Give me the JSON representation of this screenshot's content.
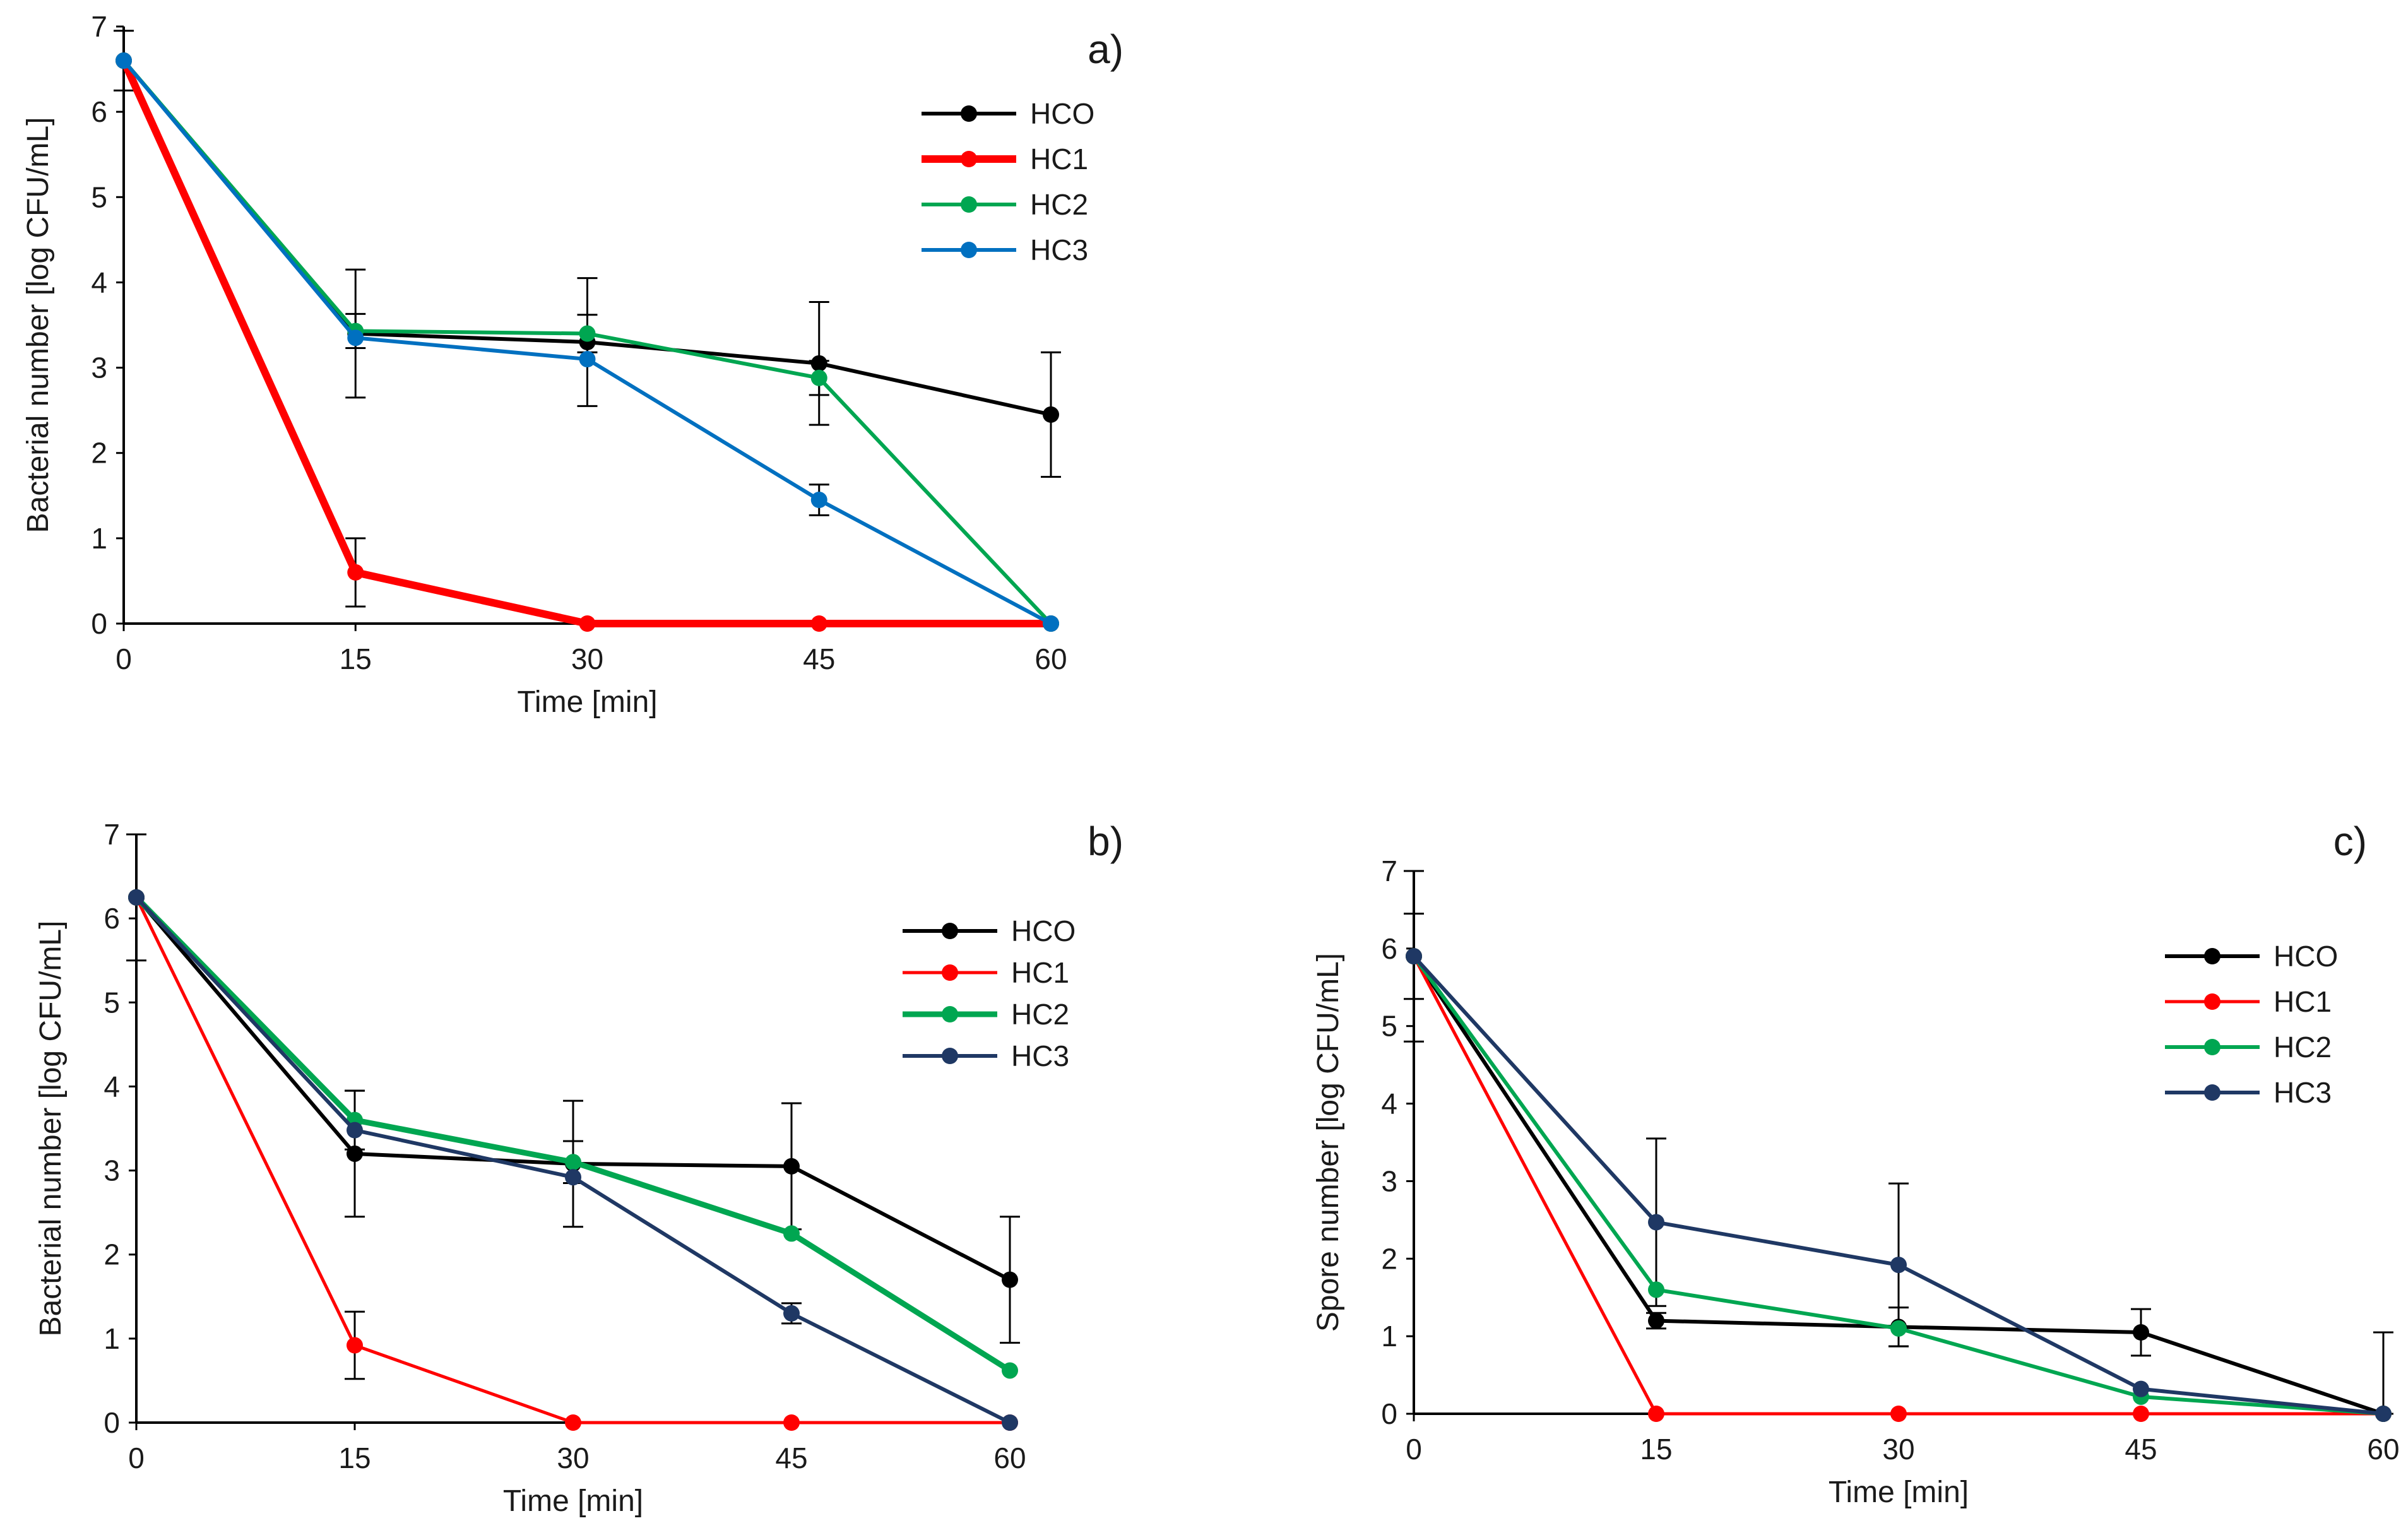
{
  "chart_data": [
    {
      "type": "line",
      "panel_label": "a)",
      "title": "",
      "xlabel": "Time [min]",
      "ylabel": "Bacterial number [log CFU/mL]",
      "x": [
        0,
        15,
        30,
        45,
        60
      ],
      "xticks": [
        "0",
        "15",
        "30",
        "45",
        "60"
      ],
      "xlim": [
        0,
        60
      ],
      "ylim": [
        0,
        7
      ],
      "yticks": [
        "0",
        "1",
        "2",
        "3",
        "4",
        "5",
        "6",
        "7"
      ],
      "grid": false,
      "legend_position": "top-right",
      "series": [
        {
          "name": "HCO",
          "color": "#000000",
          "values": [
            6.6,
            3.4,
            3.3,
            3.05,
            2.45
          ],
          "errors": [
            0.35,
            0.75,
            0.75,
            0.72,
            0.73
          ]
        },
        {
          "name": "HC1",
          "color": "#ff0000",
          "values": [
            6.6,
            0.6,
            0.0,
            0.0,
            0.0
          ],
          "errors": [
            0.0,
            0.4,
            0.0,
            0.0,
            0.0
          ]
        },
        {
          "name": "HC2",
          "color": "#00a651",
          "values": [
            6.6,
            3.43,
            3.4,
            2.88,
            0.0
          ],
          "errors": [
            0.0,
            0.2,
            0.22,
            0.2,
            0.0
          ]
        },
        {
          "name": "HC3",
          "color": "#0070c0",
          "values": [
            6.6,
            3.35,
            3.1,
            1.45,
            0.0
          ],
          "errors": [
            0.0,
            0.0,
            0.0,
            0.18,
            0.0
          ]
        }
      ]
    },
    {
      "type": "line",
      "panel_label": "b)",
      "title": "",
      "xlabel": "Time [min]",
      "ylabel": "Bacterial number [log CFU/mL]",
      "x": [
        0,
        15,
        30,
        45,
        60
      ],
      "xticks": [
        "0",
        "15",
        "30",
        "45",
        "60"
      ],
      "xlim": [
        0,
        60
      ],
      "ylim": [
        0,
        7
      ],
      "yticks": [
        "0",
        "1",
        "2",
        "3",
        "4",
        "5",
        "6",
        "7"
      ],
      "grid": false,
      "legend_position": "top-right",
      "series": [
        {
          "name": "HCO",
          "color": "#000000",
          "values": [
            6.25,
            3.2,
            3.08,
            3.05,
            1.7
          ],
          "errors": [
            0.75,
            0.75,
            0.75,
            0.75,
            0.75
          ]
        },
        {
          "name": "HC1",
          "color": "#ff0000",
          "values": [
            6.25,
            0.92,
            0.0,
            0.0,
            0.0
          ],
          "errors": [
            0.0,
            0.4,
            0.0,
            0.0,
            0.0
          ]
        },
        {
          "name": "HC2",
          "color": "#00a651",
          "values": [
            6.25,
            3.6,
            3.1,
            2.25,
            0.62
          ],
          "errors": [
            0.0,
            0.35,
            0.25,
            0.0,
            0.0
          ]
        },
        {
          "name": "HC3",
          "color": "#1f3864",
          "values": [
            6.25,
            3.48,
            2.92,
            1.3,
            0.0
          ],
          "errors": [
            0.0,
            0.0,
            0.0,
            0.12,
            0.0
          ]
        }
      ]
    },
    {
      "type": "line",
      "panel_label": "c)",
      "title": "",
      "xlabel": "Time [min]",
      "ylabel": "Spore number [log CFU/mL]",
      "x": [
        0,
        15,
        30,
        45,
        60
      ],
      "xticks": [
        "0",
        "15",
        "30",
        "45",
        "60"
      ],
      "xlim": [
        0,
        60
      ],
      "ylim": [
        0,
        7
      ],
      "yticks": [
        "0",
        "1",
        "2",
        "3",
        "4",
        "5",
        "6",
        "7"
      ],
      "grid": false,
      "legend_position": "top-right",
      "series": [
        {
          "name": "HCO",
          "color": "#000000",
          "values": [
            5.9,
            1.2,
            1.12,
            1.05,
            0.0
          ],
          "errors": [
            1.1,
            0.1,
            0.25,
            0.3,
            1.05
          ]
        },
        {
          "name": "HC1",
          "color": "#ff0000",
          "values": [
            5.9,
            0.0,
            0.0,
            0.0,
            0.0
          ],
          "errors": [
            0.0,
            0.0,
            0.0,
            0.0,
            0.0
          ]
        },
        {
          "name": "HC2",
          "color": "#00a651",
          "values": [
            5.9,
            1.6,
            1.1,
            0.22,
            0.0
          ],
          "errors": [
            0.0,
            0.0,
            0.0,
            0.0,
            0.0
          ]
        },
        {
          "name": "HC3",
          "color": "#1f3864",
          "values": [
            5.9,
            2.47,
            1.92,
            0.32,
            0.0
          ],
          "errors": [
            0.55,
            1.08,
            1.05,
            0.0,
            0.0
          ]
        }
      ]
    }
  ]
}
